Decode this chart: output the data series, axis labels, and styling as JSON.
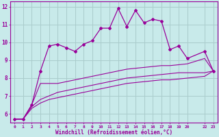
{
  "title": "",
  "xlabel": "Windchill (Refroidissement éolien,°C)",
  "bg_color": "#c8eaea",
  "line_color": "#990099",
  "grid_color": "#aacccc",
  "xlim": [
    -0.5,
    23.5
  ],
  "ylim": [
    5.5,
    12.3
  ],
  "xticks": [
    0,
    1,
    2,
    3,
    4,
    5,
    6,
    7,
    8,
    9,
    10,
    11,
    12,
    13,
    14,
    15,
    16,
    17,
    18,
    19,
    20,
    22,
    23
  ],
  "yticks": [
    6,
    7,
    8,
    9,
    10,
    11,
    12
  ],
  "main_x": [
    0,
    1,
    2,
    3,
    4,
    5,
    6,
    7,
    8,
    9,
    10,
    11,
    12,
    13,
    14,
    15,
    16,
    17,
    18,
    19,
    20,
    22,
    23
  ],
  "main_y": [
    5.7,
    5.7,
    6.5,
    8.4,
    9.8,
    9.9,
    9.7,
    9.5,
    9.9,
    10.1,
    10.8,
    10.8,
    11.9,
    10.9,
    11.8,
    11.1,
    11.3,
    11.2,
    9.6,
    9.8,
    9.1,
    9.5,
    8.4
  ],
  "line2_x": [
    0,
    1,
    2,
    3,
    4,
    5,
    6,
    7,
    8,
    9,
    10,
    11,
    12,
    13,
    14,
    15,
    16,
    17,
    18,
    19,
    20,
    22,
    23
  ],
  "line2_y": [
    5.7,
    5.7,
    6.5,
    7.7,
    7.7,
    7.7,
    7.8,
    7.9,
    8.0,
    8.1,
    8.2,
    8.3,
    8.4,
    8.5,
    8.55,
    8.6,
    8.65,
    8.7,
    8.7,
    8.75,
    8.8,
    9.1,
    8.4
  ],
  "line3_x": [
    0,
    1,
    2,
    3,
    4,
    5,
    6,
    7,
    8,
    9,
    10,
    11,
    12,
    13,
    14,
    15,
    16,
    17,
    18,
    19,
    20,
    22,
    23
  ],
  "line3_y": [
    5.7,
    5.7,
    6.4,
    6.8,
    7.0,
    7.2,
    7.3,
    7.4,
    7.5,
    7.6,
    7.7,
    7.8,
    7.9,
    8.0,
    8.05,
    8.1,
    8.15,
    8.2,
    8.25,
    8.3,
    8.3,
    8.3,
    8.4
  ],
  "line4_x": [
    0,
    1,
    2,
    3,
    4,
    5,
    6,
    7,
    8,
    9,
    10,
    11,
    12,
    13,
    14,
    15,
    16,
    17,
    18,
    19,
    20,
    22,
    23
  ],
  "line4_y": [
    5.7,
    5.7,
    6.3,
    6.6,
    6.8,
    6.9,
    7.0,
    7.1,
    7.2,
    7.3,
    7.4,
    7.5,
    7.6,
    7.7,
    7.75,
    7.8,
    7.85,
    7.9,
    7.9,
    7.95,
    8.0,
    8.1,
    8.4
  ]
}
